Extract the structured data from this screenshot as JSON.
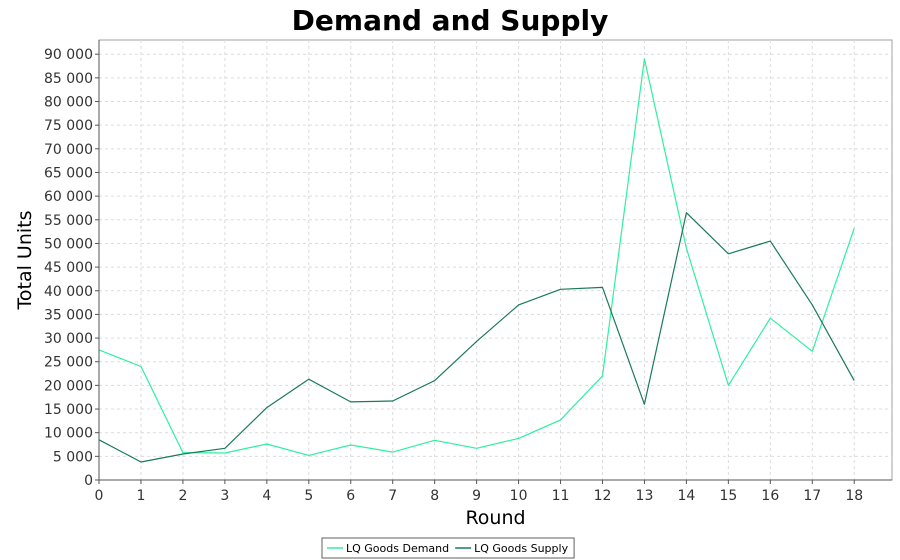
{
  "chart_data": {
    "type": "line",
    "title": "Demand and Supply",
    "xlabel": "Round",
    "ylabel": "Total Units",
    "x": [
      0,
      1,
      2,
      3,
      4,
      5,
      6,
      7,
      8,
      9,
      10,
      11,
      12,
      13,
      14,
      15,
      16,
      17,
      18
    ],
    "xlim": [
      0,
      18.9
    ],
    "ylim": [
      0,
      93000
    ],
    "yticks": [
      0,
      5000,
      10000,
      15000,
      20000,
      25000,
      30000,
      35000,
      40000,
      45000,
      50000,
      55000,
      60000,
      65000,
      70000,
      75000,
      80000,
      85000,
      90000
    ],
    "ytick_labels": [
      "0",
      "5 000",
      "10 000",
      "15 000",
      "20 000",
      "25 000",
      "30 000",
      "35 000",
      "40 000",
      "45 000",
      "50 000",
      "55 000",
      "60 000",
      "65 000",
      "70 000",
      "75 000",
      "80 000",
      "85 000",
      "90 000"
    ],
    "grid": true,
    "legend_position": "bottom-center",
    "series": [
      {
        "name": "LQ Goods Demand",
        "color": "#2ef0a0",
        "values": [
          27500,
          24000,
          5800,
          5700,
          7600,
          5200,
          7400,
          5900,
          8400,
          6700,
          8800,
          12700,
          22000,
          89000,
          49000,
          20000,
          34200,
          27200,
          53200
        ]
      },
      {
        "name": "LQ Goods Supply",
        "color": "#1a7a5a",
        "values": [
          8500,
          3800,
          5500,
          6700,
          15300,
          21300,
          16500,
          16700,
          21000,
          29300,
          37000,
          40300,
          40700,
          16000,
          56500,
          47800,
          50500,
          37000,
          21000
        ]
      }
    ]
  }
}
